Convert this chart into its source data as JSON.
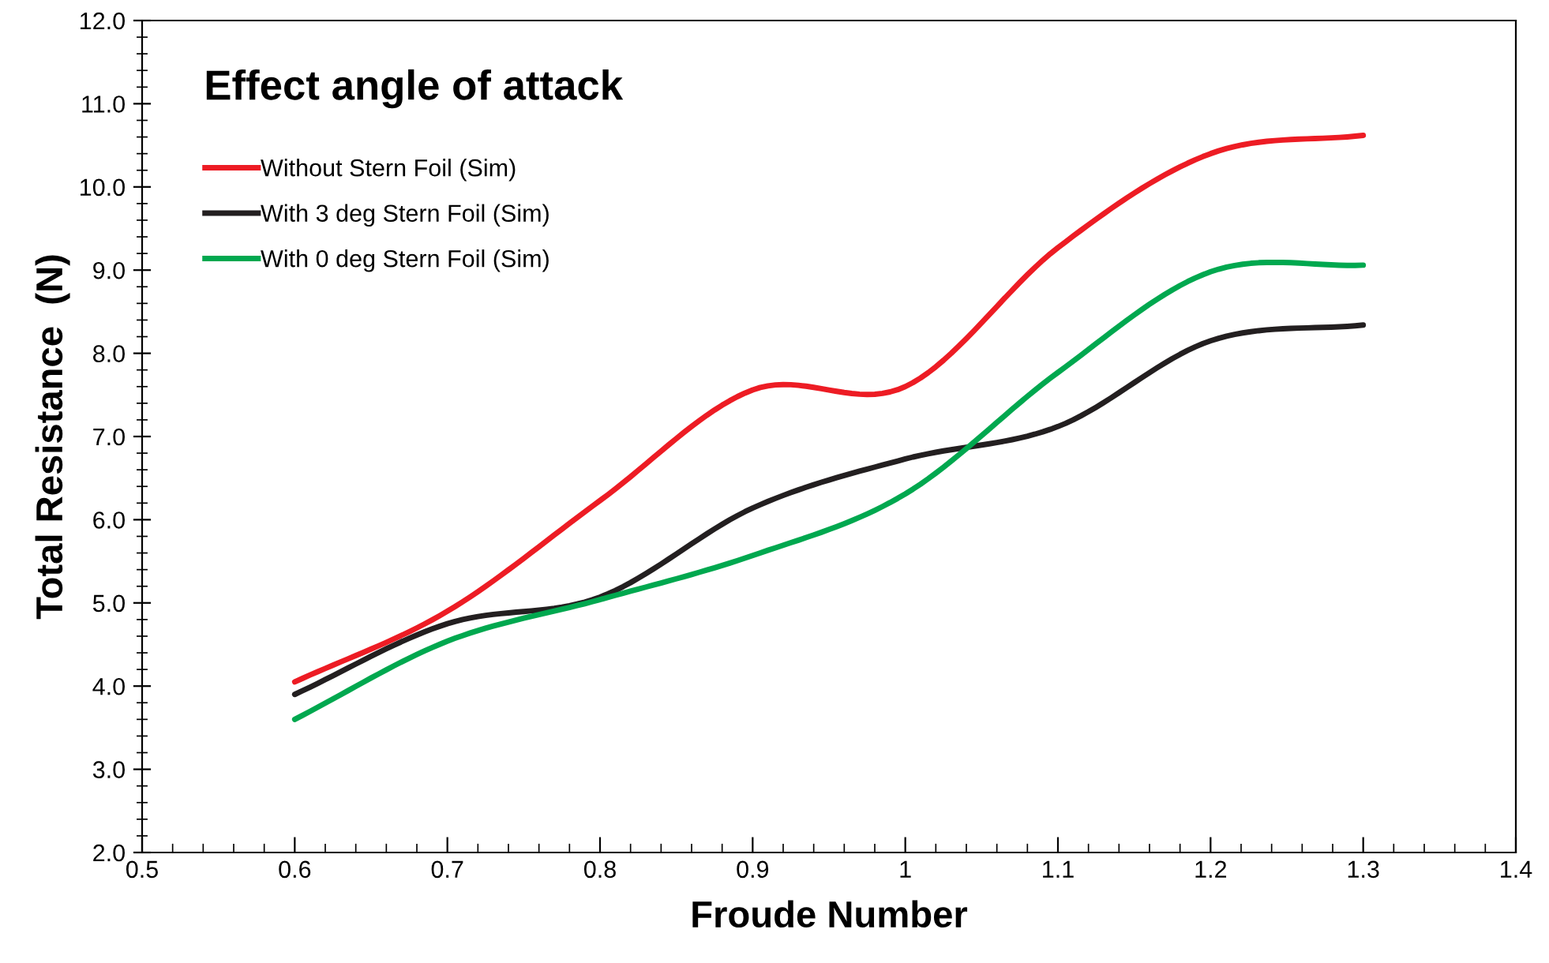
{
  "chart_data": {
    "type": "line",
    "title": "Effect angle of attack",
    "xlabel": "Froude Number",
    "ylabel": "Total Resistance  (N)",
    "x": [
      0.6,
      0.7,
      0.8,
      0.9,
      1.0,
      1.1,
      1.2,
      1.3
    ],
    "series": [
      {
        "name": "Without Stern Foil (Sim)",
        "color": "#ed1c24",
        "values": [
          4.05,
          4.9,
          6.23,
          7.56,
          7.6,
          9.27,
          10.4,
          10.62
        ]
      },
      {
        "name": "With 3 deg Stern Foil (Sim)",
        "color": "#231f20",
        "values": [
          3.9,
          4.75,
          5.07,
          6.14,
          6.73,
          7.12,
          8.15,
          8.34
        ]
      },
      {
        "name": "With 0 deg Stern Foil (Sim)",
        "color": "#00a84f",
        "values": [
          3.6,
          4.54,
          5.04,
          5.57,
          6.31,
          7.77,
          8.98,
          9.06
        ]
      }
    ],
    "xlim": [
      0.5,
      1.4
    ],
    "xticks": [
      0.5,
      0.6,
      0.7,
      0.8,
      0.9,
      1,
      1.1,
      1.2,
      1.3,
      1.4
    ],
    "ylim": [
      2.0,
      12.0
    ],
    "yticks": [
      {
        "value": 2,
        "label": "2.0"
      },
      {
        "value": 3,
        "label": "3.0"
      },
      {
        "value": 4,
        "label": "4.0"
      },
      {
        "value": 5,
        "label": "5.0"
      },
      {
        "value": 6,
        "label": "6.0"
      },
      {
        "value": 7,
        "label": "7.0"
      },
      {
        "value": 8,
        "label": "8.0"
      },
      {
        "value": 9,
        "label": "9.0"
      },
      {
        "value": 10,
        "label": "10.0"
      },
      {
        "value": 11,
        "label": "11.0"
      },
      {
        "value": 12,
        "label": "12.0"
      }
    ],
    "grid": false,
    "legend": "top left",
    "marker": "none",
    "line_style": "solid"
  }
}
